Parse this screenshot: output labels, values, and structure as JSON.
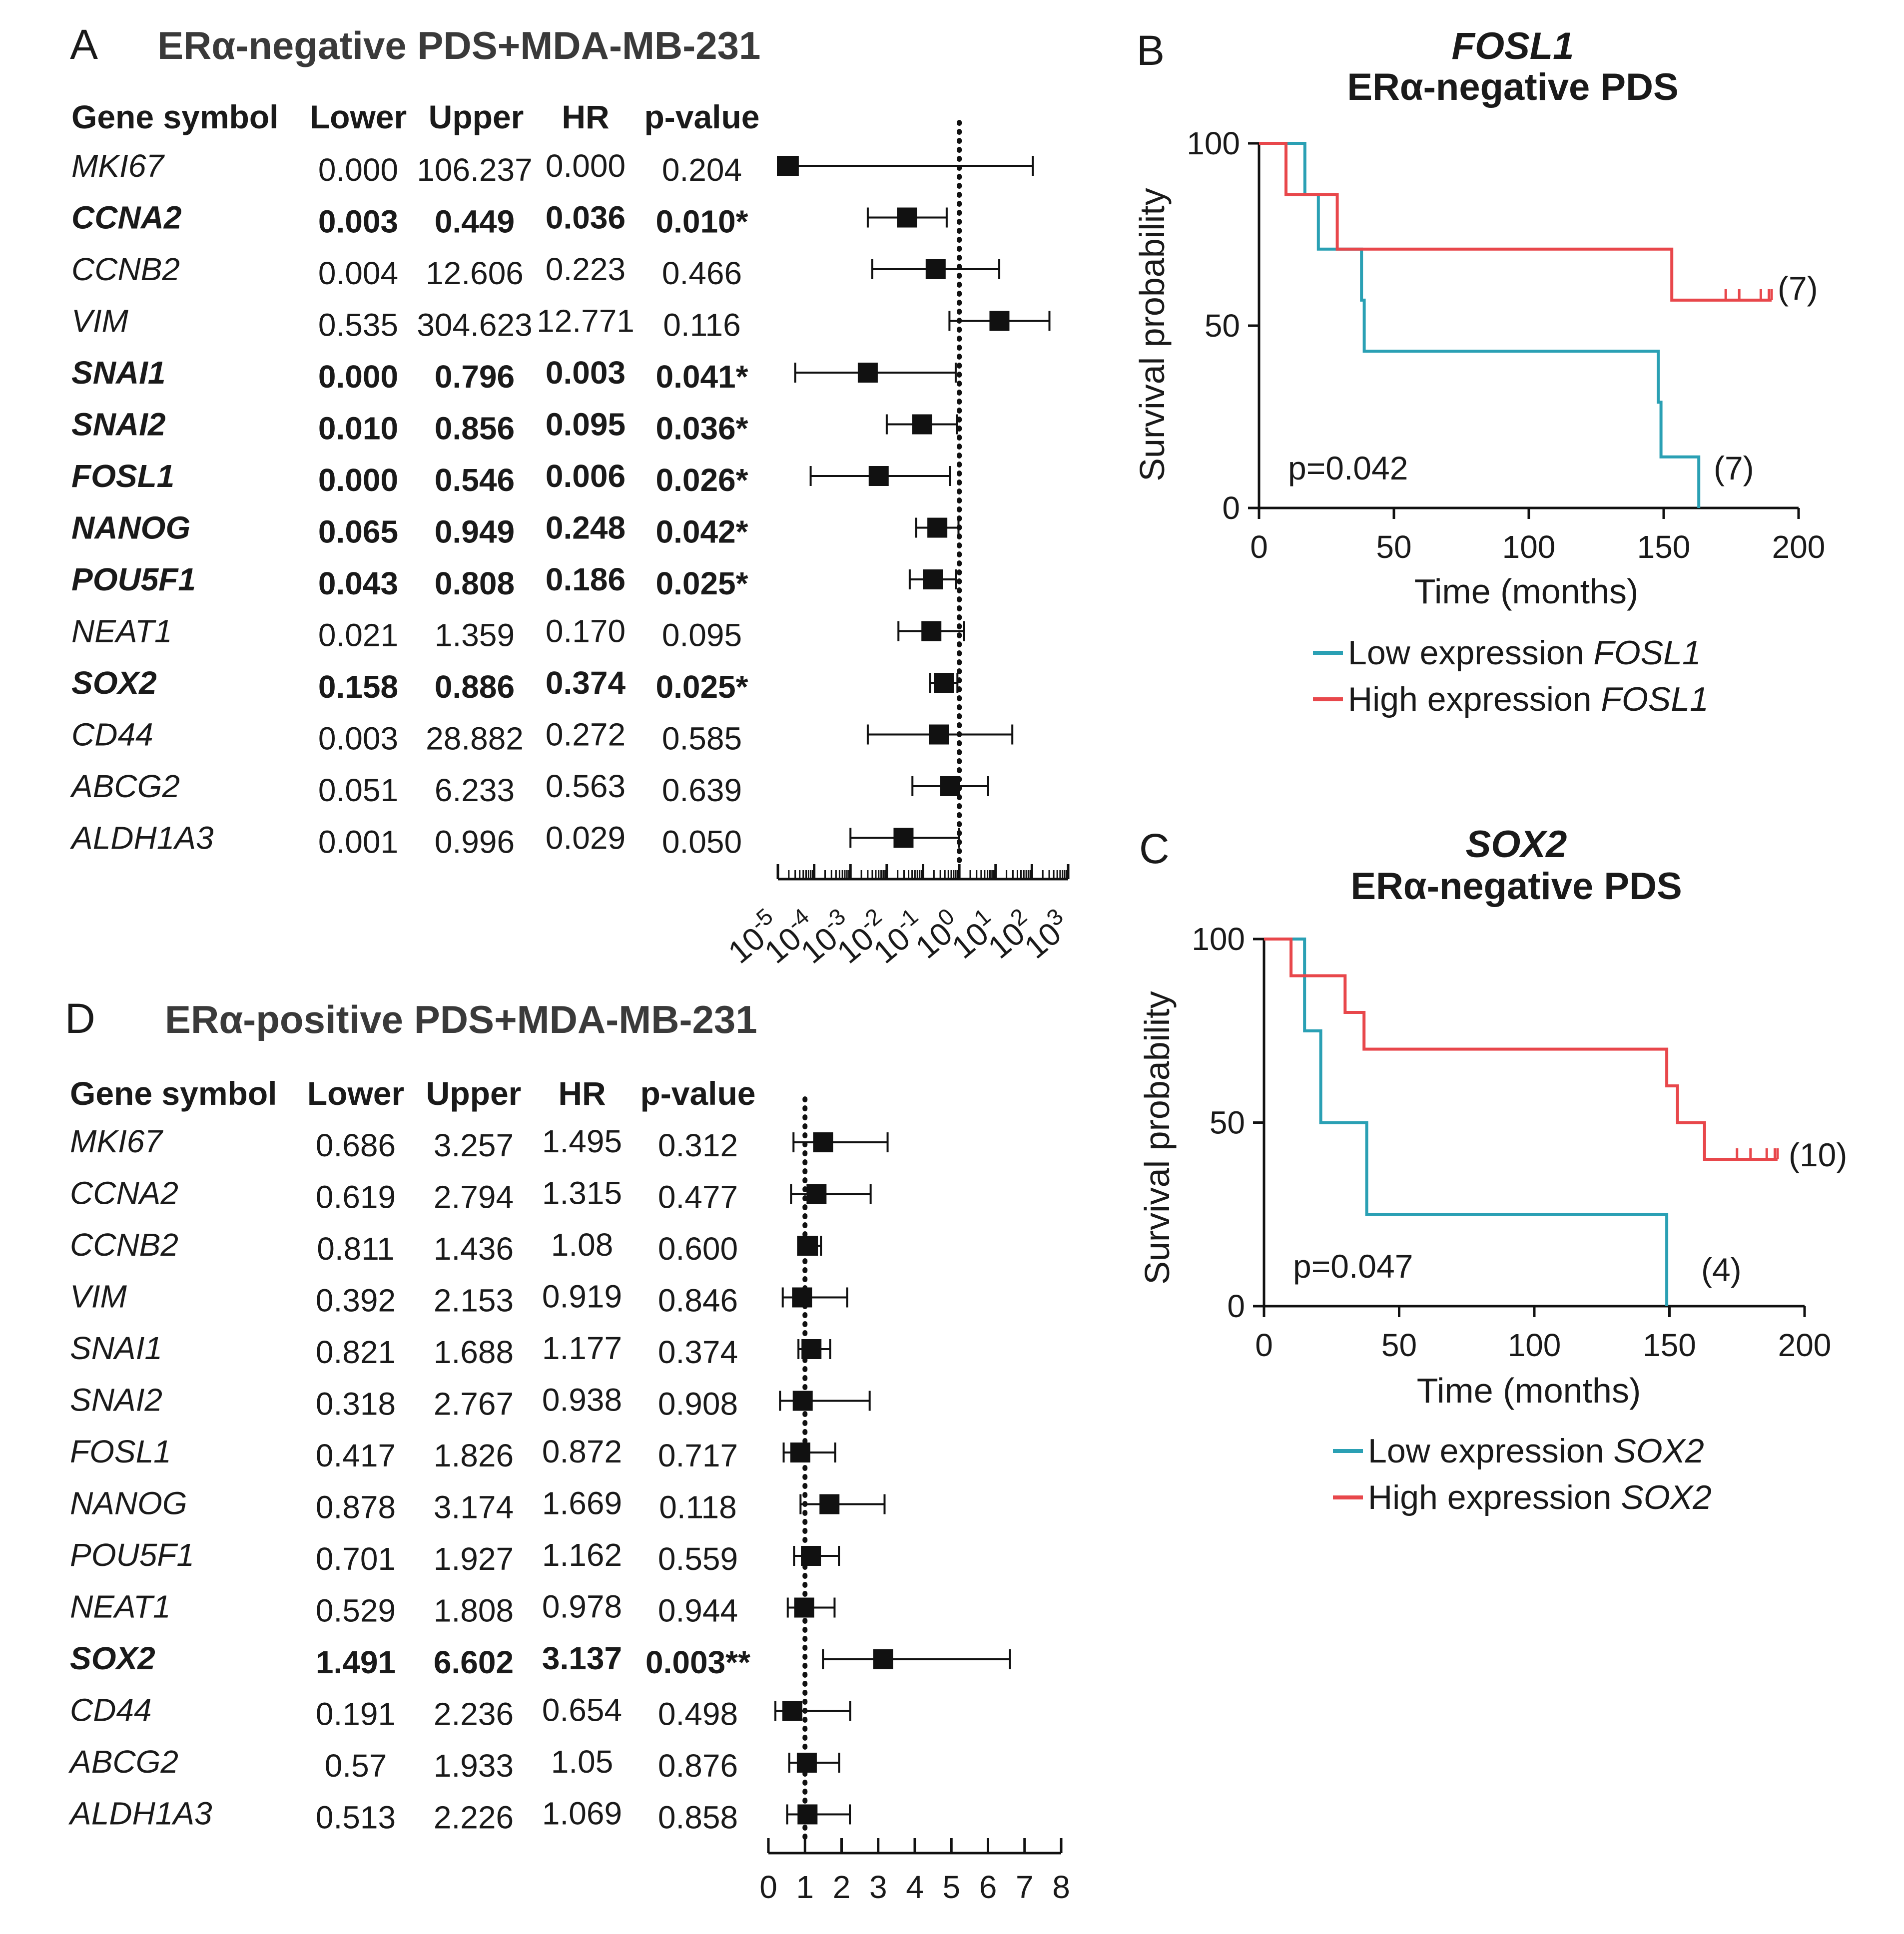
{
  "panels": {
    "A": {
      "letter": "A",
      "title": "ERα-negative PDS+MDA-MB-231",
      "headers": [
        "Gene symbol",
        "Lower",
        "Upper",
        "HR",
        "p-value"
      ],
      "rows": [
        {
          "gene": "MKI67",
          "lower": "0.000",
          "upper": "106.237",
          "hr": "0.000",
          "p": "0.204",
          "sig": false,
          "lo": 1e-05,
          "up": 106.237,
          "h": 2e-05
        },
        {
          "gene": "CCNA2",
          "lower": "0.003",
          "upper": "0.449",
          "hr": "0.036",
          "p": "0.010*",
          "sig": true,
          "lo": 0.003,
          "up": 0.449,
          "h": 0.036
        },
        {
          "gene": "CCNB2",
          "lower": "0.004",
          "upper": "12.606",
          "hr": "0.223",
          "p": "0.466",
          "sig": false,
          "lo": 0.004,
          "up": 12.606,
          "h": 0.223
        },
        {
          "gene": "VIM",
          "lower": "0.535",
          "upper": "304.623",
          "hr": "12.771",
          "p": "0.116",
          "sig": false,
          "lo": 0.535,
          "up": 304.623,
          "h": 12.771
        },
        {
          "gene": "SNAI1",
          "lower": "0.000",
          "upper": "0.796",
          "hr": "0.003",
          "p": "0.041*",
          "sig": true,
          "lo": 3e-05,
          "up": 0.796,
          "h": 0.003
        },
        {
          "gene": "SNAI2",
          "lower": "0.010",
          "upper": "0.856",
          "hr": "0.095",
          "p": "0.036*",
          "sig": true,
          "lo": 0.01,
          "up": 0.856,
          "h": 0.095
        },
        {
          "gene": "FOSL1",
          "lower": "0.000",
          "upper": "0.546",
          "hr": "0.006",
          "p": "0.026*",
          "sig": true,
          "lo": 8e-05,
          "up": 0.546,
          "h": 0.006
        },
        {
          "gene": "NANOG",
          "lower": "0.065",
          "upper": "0.949",
          "hr": "0.248",
          "p": "0.042*",
          "sig": true,
          "lo": 0.065,
          "up": 0.949,
          "h": 0.248
        },
        {
          "gene": "POU5F1",
          "lower": "0.043",
          "upper": "0.808",
          "hr": "0.186",
          "p": "0.025*",
          "sig": true,
          "lo": 0.043,
          "up": 0.808,
          "h": 0.186
        },
        {
          "gene": "NEAT1",
          "lower": "0.021",
          "upper": "1.359",
          "hr": "0.170",
          "p": "0.095",
          "sig": false,
          "lo": 0.021,
          "up": 1.359,
          "h": 0.17
        },
        {
          "gene": "SOX2",
          "lower": "0.158",
          "upper": "0.886",
          "hr": "0.374",
          "p": "0.025*",
          "sig": true,
          "lo": 0.158,
          "up": 0.886,
          "h": 0.374
        },
        {
          "gene": "CD44",
          "lower": "0.003",
          "upper": "28.882",
          "hr": "0.272",
          "p": "0.585",
          "sig": false,
          "lo": 0.003,
          "up": 28.882,
          "h": 0.272
        },
        {
          "gene": "ABCG2",
          "lower": "0.051",
          "upper": "6.233",
          "hr": "0.563",
          "p": "0.639",
          "sig": false,
          "lo": 0.051,
          "up": 6.233,
          "h": 0.563
        },
        {
          "gene": "ALDH1A3",
          "lower": "0.001",
          "upper": "0.996",
          "hr": "0.029",
          "p": "0.050",
          "sig": false,
          "lo": 0.001,
          "up": 0.996,
          "h": 0.029
        }
      ],
      "axis_ticks": [
        "10-5",
        "10-4",
        "10-3",
        "10-2",
        "10-1",
        "100",
        "101",
        "102",
        "103"
      ]
    },
    "D": {
      "letter": "D",
      "title": "ERα-positive PDS+MDA-MB-231",
      "headers": [
        "Gene symbol",
        "Lower",
        "Upper",
        "HR",
        "p-value"
      ],
      "rows": [
        {
          "gene": "MKI67",
          "lower": "0.686",
          "upper": "3.257",
          "hr": "1.495",
          "p": "0.312",
          "sig": false,
          "lo": 0.686,
          "up": 3.257,
          "h": 1.495
        },
        {
          "gene": "CCNA2",
          "lower": "0.619",
          "upper": "2.794",
          "hr": "1.315",
          "p": "0.477",
          "sig": false,
          "lo": 0.619,
          "up": 2.794,
          "h": 1.315
        },
        {
          "gene": "CCNB2",
          "lower": "0.811",
          "upper": "1.436",
          "hr": "1.08",
          "p": "0.600",
          "sig": false,
          "lo": 0.811,
          "up": 1.436,
          "h": 1.08
        },
        {
          "gene": "VIM",
          "lower": "0.392",
          "upper": "2.153",
          "hr": "0.919",
          "p": "0.846",
          "sig": false,
          "lo": 0.392,
          "up": 2.153,
          "h": 0.919
        },
        {
          "gene": "SNAI1",
          "lower": "0.821",
          "upper": "1.688",
          "hr": "1.177",
          "p": "0.374",
          "sig": false,
          "lo": 0.821,
          "up": 1.688,
          "h": 1.177
        },
        {
          "gene": "SNAI2",
          "lower": "0.318",
          "upper": "2.767",
          "hr": "0.938",
          "p": "0.908",
          "sig": false,
          "lo": 0.318,
          "up": 2.767,
          "h": 0.938
        },
        {
          "gene": "FOSL1",
          "lower": "0.417",
          "upper": "1.826",
          "hr": "0.872",
          "p": "0.717",
          "sig": false,
          "lo": 0.417,
          "up": 1.826,
          "h": 0.872
        },
        {
          "gene": "NANOG",
          "lower": "0.878",
          "upper": "3.174",
          "hr": "1.669",
          "p": "0.118",
          "sig": false,
          "lo": 0.878,
          "up": 3.174,
          "h": 1.669
        },
        {
          "gene": "POU5F1",
          "lower": "0.701",
          "upper": "1.927",
          "hr": "1.162",
          "p": "0.559",
          "sig": false,
          "lo": 0.701,
          "up": 1.927,
          "h": 1.162
        },
        {
          "gene": "NEAT1",
          "lower": "0.529",
          "upper": "1.808",
          "hr": "0.978",
          "p": "0.944",
          "sig": false,
          "lo": 0.529,
          "up": 1.808,
          "h": 0.978
        },
        {
          "gene": "SOX2",
          "lower": "1.491",
          "upper": "6.602",
          "hr": "3.137",
          "p": "0.003**",
          "sig": true,
          "lo": 1.491,
          "up": 6.602,
          "h": 3.137
        },
        {
          "gene": "CD44",
          "lower": "0.191",
          "upper": "2.236",
          "hr": "0.654",
          "p": "0.498",
          "sig": false,
          "lo": 0.191,
          "up": 2.236,
          "h": 0.654
        },
        {
          "gene": "ABCG2",
          "lower": "0.57",
          "upper": "1.933",
          "hr": "1.05",
          "p": "0.876",
          "sig": false,
          "lo": 0.57,
          "up": 1.933,
          "h": 1.05
        },
        {
          "gene": "ALDH1A3",
          "lower": "0.513",
          "upper": "2.226",
          "hr": "1.069",
          "p": "0.858",
          "sig": false,
          "lo": 0.513,
          "up": 2.226,
          "h": 1.069
        }
      ],
      "axis_ticks": [
        "0",
        "1",
        "2",
        "3",
        "4",
        "5",
        "6",
        "7",
        "8"
      ]
    },
    "B": {
      "letter": "B",
      "gene_title": "FOSL1",
      "subtitle": "ERα-negative PDS",
      "pvalue": "p=0.042",
      "n_high": "(7)",
      "n_low": "(7)",
      "ylabel": "Survival probability",
      "xlabel": "Time (months)",
      "legend_low": "Low expression ",
      "legend_high": "High expression ",
      "legend_gene": "FOSL1"
    },
    "C": {
      "letter": "C",
      "gene_title": "SOX2",
      "subtitle": "ERα-negative PDS",
      "pvalue": "p=0.047",
      "n_high": "(10)",
      "n_low": "(4)",
      "ylabel": "Survival probability",
      "xlabel": "Time (months)",
      "legend_low": "Low expression ",
      "legend_high": "High expression ",
      "legend_gene": "SOX2"
    }
  },
  "chart_data": [
    {
      "type": "forest",
      "panel": "A",
      "title": "ERα-negative PDS+MDA-MB-231",
      "xscale": "log10",
      "xlim": [
        1e-05,
        1000
      ],
      "reference_line": 1,
      "categories": [
        "MKI67",
        "CCNA2",
        "CCNB2",
        "VIM",
        "SNAI1",
        "SNAI2",
        "FOSL1",
        "NANOG",
        "POU5F1",
        "NEAT1",
        "SOX2",
        "CD44",
        "ABCG2",
        "ALDH1A3"
      ],
      "hr": [
        0.0,
        0.036,
        0.223,
        12.771,
        0.003,
        0.095,
        0.006,
        0.248,
        0.186,
        0.17,
        0.374,
        0.272,
        0.563,
        0.029
      ],
      "lower": [
        0.0,
        0.003,
        0.004,
        0.535,
        0.0,
        0.01,
        0.0,
        0.065,
        0.043,
        0.021,
        0.158,
        0.003,
        0.051,
        0.001
      ],
      "upper": [
        106.237,
        0.449,
        12.606,
        304.623,
        0.796,
        0.856,
        0.546,
        0.949,
        0.808,
        1.359,
        0.886,
        28.882,
        6.233,
        0.996
      ]
    },
    {
      "type": "forest",
      "panel": "D",
      "title": "ERα-positive PDS+MDA-MB-231",
      "xscale": "linear",
      "xlim": [
        0,
        8
      ],
      "reference_line": 1,
      "categories": [
        "MKI67",
        "CCNA2",
        "CCNB2",
        "VIM",
        "SNAI1",
        "SNAI2",
        "FOSL1",
        "NANOG",
        "POU5F1",
        "NEAT1",
        "SOX2",
        "CD44",
        "ABCG2",
        "ALDH1A3"
      ],
      "hr": [
        1.495,
        1.315,
        1.08,
        0.919,
        1.177,
        0.938,
        0.872,
        1.669,
        1.162,
        0.978,
        3.137,
        0.654,
        1.05,
        1.069
      ],
      "lower": [
        0.686,
        0.619,
        0.811,
        0.392,
        0.821,
        0.318,
        0.417,
        0.878,
        0.701,
        0.529,
        1.491,
        0.191,
        0.57,
        0.513
      ],
      "upper": [
        3.257,
        2.794,
        1.436,
        2.153,
        1.688,
        2.767,
        1.826,
        3.174,
        1.927,
        1.808,
        6.602,
        2.236,
        1.933,
        2.226
      ]
    },
    {
      "type": "line",
      "subtype": "kaplan-meier",
      "panel": "B",
      "title": "FOSL1 ERα-negative PDS",
      "xlabel": "Time (months)",
      "ylabel": "Survival probability",
      "xlim": [
        0,
        200
      ],
      "ylim": [
        0,
        100
      ],
      "xticks": [
        0,
        50,
        100,
        150,
        200
      ],
      "yticks": [
        0,
        50,
        100
      ],
      "series": [
        {
          "name": "Low expression FOSL1",
          "color": "#2aa0b4",
          "steps": [
            [
              0,
              100
            ],
            [
              17,
              100
            ],
            [
              17,
              86
            ],
            [
              22,
              86
            ],
            [
              22,
              71
            ],
            [
              38,
              71
            ],
            [
              38,
              57
            ],
            [
              39,
              57
            ],
            [
              39,
              43
            ],
            [
              148,
              43
            ],
            [
              148,
              29
            ],
            [
              149,
              29
            ],
            [
              149,
              14
            ],
            [
              163,
              14
            ],
            [
              163,
              0
            ]
          ],
          "censor": []
        },
        {
          "name": "High expression FOSL1",
          "color": "#e8474b",
          "steps": [
            [
              0,
              100
            ],
            [
              10,
              100
            ],
            [
              10,
              86
            ],
            [
              29,
              86
            ],
            [
              29,
              71
            ],
            [
              153,
              71
            ],
            [
              153,
              57
            ],
            [
              190,
              57
            ]
          ],
          "censor": [
            173,
            178,
            186,
            189,
            190
          ]
        }
      ],
      "pvalue": "p=0.042",
      "n": {
        "high": 7,
        "low": 7
      }
    },
    {
      "type": "line",
      "subtype": "kaplan-meier",
      "panel": "C",
      "title": "SOX2 ERα-negative PDS",
      "xlabel": "Time (months)",
      "ylabel": "Survival probability",
      "xlim": [
        0,
        200
      ],
      "ylim": [
        0,
        100
      ],
      "xticks": [
        0,
        50,
        100,
        150,
        200
      ],
      "yticks": [
        0,
        50,
        100
      ],
      "series": [
        {
          "name": "Low expression SOX2",
          "color": "#2aa0b4",
          "steps": [
            [
              0,
              100
            ],
            [
              15,
              100
            ],
            [
              15,
              75
            ],
            [
              21,
              75
            ],
            [
              21,
              50
            ],
            [
              38,
              50
            ],
            [
              38,
              25
            ],
            [
              149,
              25
            ],
            [
              149,
              0
            ]
          ],
          "censor": []
        },
        {
          "name": "High expression SOX2",
          "color": "#e8474b",
          "steps": [
            [
              0,
              100
            ],
            [
              10,
              100
            ],
            [
              10,
              90
            ],
            [
              30,
              90
            ],
            [
              30,
              80
            ],
            [
              37,
              80
            ],
            [
              37,
              70
            ],
            [
              149,
              70
            ],
            [
              149,
              60
            ],
            [
              153,
              60
            ],
            [
              153,
              50
            ],
            [
              163,
              50
            ],
            [
              163,
              40
            ],
            [
              190,
              40
            ]
          ],
          "censor": [
            175,
            180,
            186,
            189,
            190
          ]
        }
      ],
      "pvalue": "p=0.047",
      "n": {
        "high": 10,
        "low": 4
      }
    }
  ]
}
